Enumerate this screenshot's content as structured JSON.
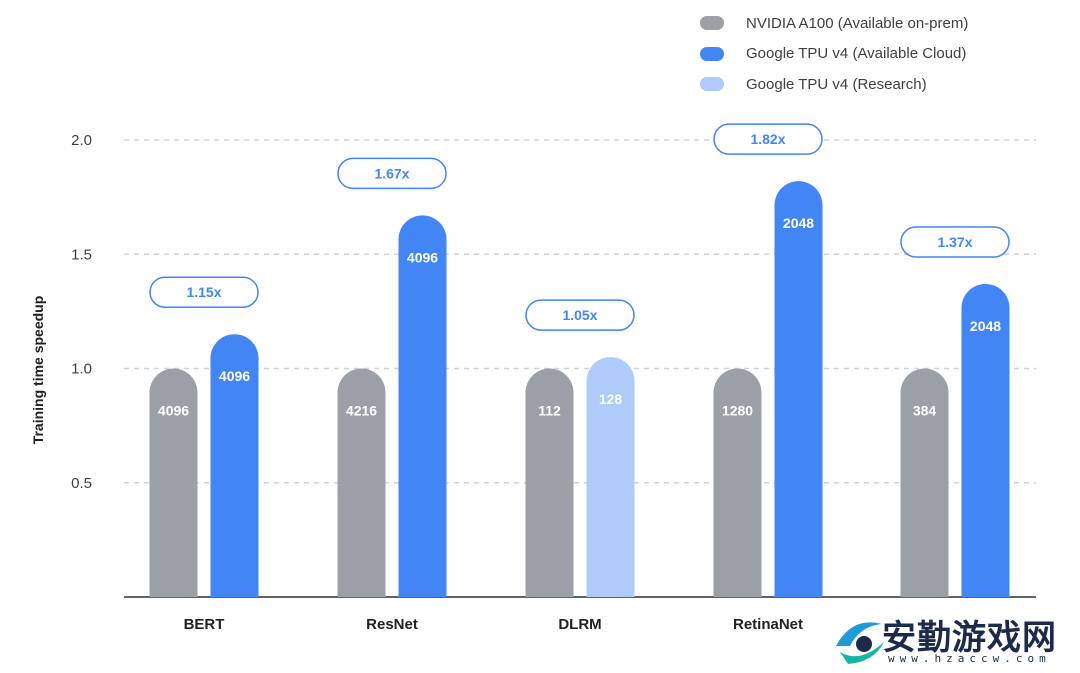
{
  "legend": [
    {
      "label": "NVIDIA A100 (Available on-prem)",
      "color": "#9aa0a6"
    },
    {
      "label": "Google TPU v4 (Available Cloud)",
      "color": "#4285f4"
    },
    {
      "label": "Google TPU v4 (Research)",
      "color": "#aecbfa"
    }
  ],
  "axis": {
    "ylabel": "Training time speedup"
  },
  "watermark": {
    "title": "安勤游戏网",
    "url": "www.hzaccw.com"
  },
  "chart_data": {
    "type": "bar",
    "title": "",
    "xlabel": "",
    "ylabel": "Training time speedup",
    "ylim": [
      0,
      2.0
    ],
    "yticks": [
      0.5,
      1.0,
      1.5,
      2.0
    ],
    "grid": true,
    "legend_position": "top-right",
    "categories": [
      "BERT",
      "ResNet",
      "DLRM",
      "RetinaNet",
      ""
    ],
    "groups": [
      {
        "category": "BERT",
        "speedup_label": "1.15x",
        "bars": [
          {
            "series": "NVIDIA A100 (Available on-prem)",
            "value": 1.0,
            "label": "4096"
          },
          {
            "series": "Google TPU v4 (Available Cloud)",
            "value": 1.15,
            "label": "4096"
          }
        ]
      },
      {
        "category": "ResNet",
        "speedup_label": "1.67x",
        "bars": [
          {
            "series": "NVIDIA A100 (Available on-prem)",
            "value": 1.0,
            "label": "4216"
          },
          {
            "series": "Google TPU v4 (Available Cloud)",
            "value": 1.67,
            "label": "4096"
          }
        ]
      },
      {
        "category": "DLRM",
        "speedup_label": "1.05x",
        "bars": [
          {
            "series": "NVIDIA A100 (Available on-prem)",
            "value": 1.0,
            "label": "112"
          },
          {
            "series": "Google TPU v4 (Research)",
            "value": 1.05,
            "label": "128"
          }
        ]
      },
      {
        "category": "RetinaNet",
        "speedup_label": "1.82x",
        "bars": [
          {
            "series": "NVIDIA A100 (Available on-prem)",
            "value": 1.0,
            "label": "1280"
          },
          {
            "series": "Google TPU v4 (Available Cloud)",
            "value": 1.82,
            "label": "2048"
          }
        ]
      },
      {
        "category": "",
        "speedup_label": "1.37x",
        "bars": [
          {
            "series": "NVIDIA A100 (Available on-prem)",
            "value": 1.0,
            "label": "384"
          },
          {
            "series": "Google TPU v4 (Available Cloud)",
            "value": 1.37,
            "label": "2048"
          }
        ]
      }
    ]
  }
}
